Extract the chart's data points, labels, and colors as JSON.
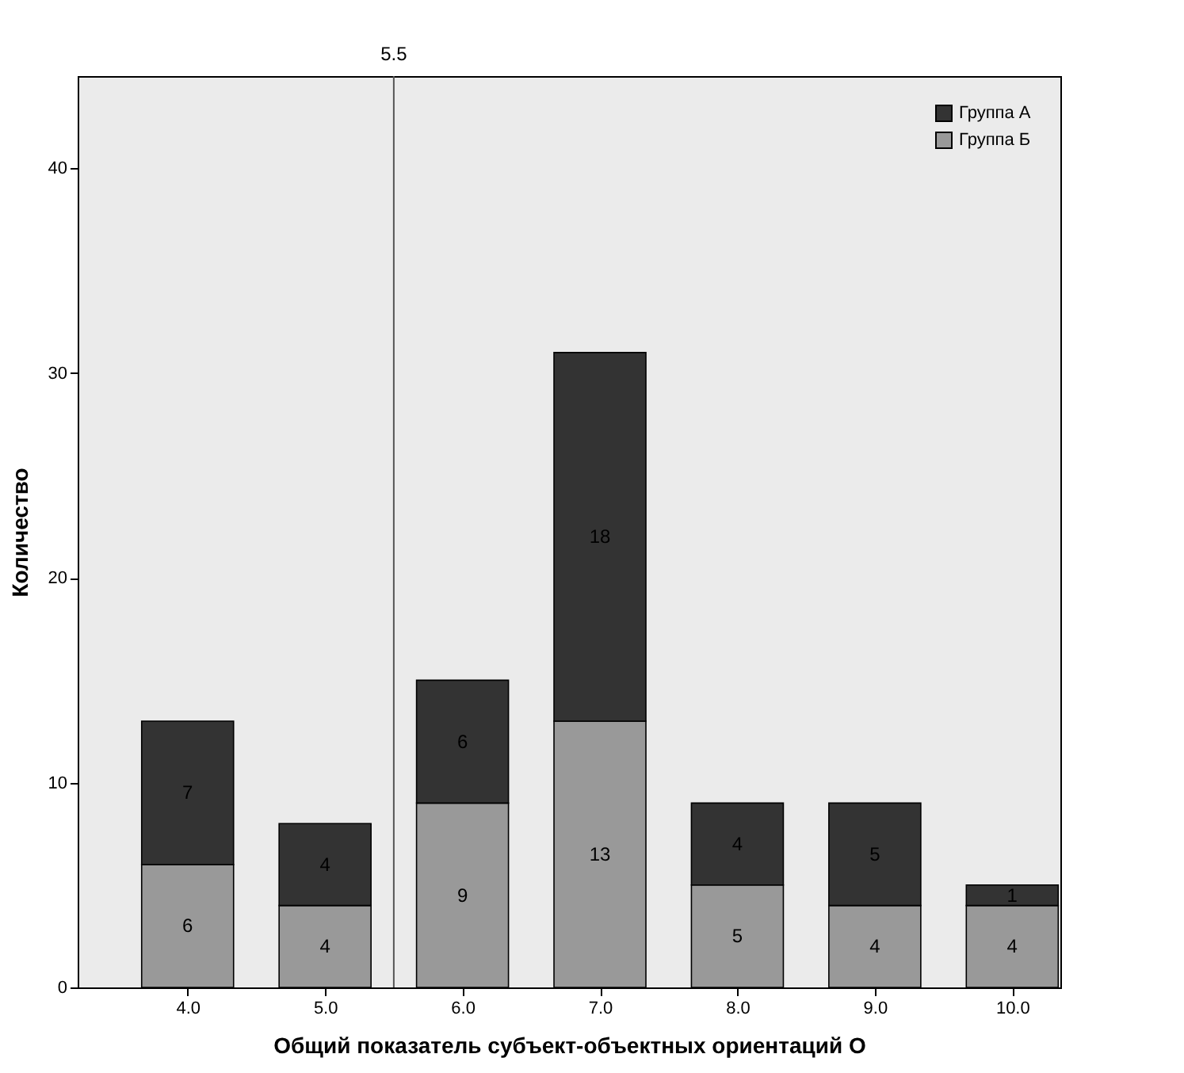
{
  "chart_data": {
    "type": "bar",
    "stacked": true,
    "xlabel": "Общий показатель субъект-объектных ориентаций О",
    "ylabel": "Количество",
    "x": [
      4,
      5,
      6,
      7,
      8,
      9,
      10
    ],
    "xlim": [
      3.2,
      10.35
    ],
    "xticks": [
      {
        "value": 4,
        "label": "4.0"
      },
      {
        "value": 5,
        "label": "5.0"
      },
      {
        "value": 6,
        "label": "6.0"
      },
      {
        "value": 7,
        "label": "7.0"
      },
      {
        "value": 8,
        "label": "8.0"
      },
      {
        "value": 9,
        "label": "9.0"
      },
      {
        "value": 10,
        "label": "10.0"
      }
    ],
    "ylim": [
      0,
      44.5
    ],
    "yticks": [
      0,
      10,
      20,
      30,
      40
    ],
    "series": [
      {
        "name": "Группа Б",
        "color": "#999999",
        "values": [
          6,
          4,
          9,
          13,
          5,
          4,
          4
        ]
      },
      {
        "name": "Группа А",
        "color": "#333333",
        "values": [
          7,
          4,
          6,
          18,
          4,
          5,
          1
        ]
      }
    ],
    "data_labels": true,
    "ref_lines": [
      {
        "axis": "x",
        "value": 5.5,
        "label": "5.5"
      }
    ],
    "legend": "top right",
    "grid": false
  }
}
